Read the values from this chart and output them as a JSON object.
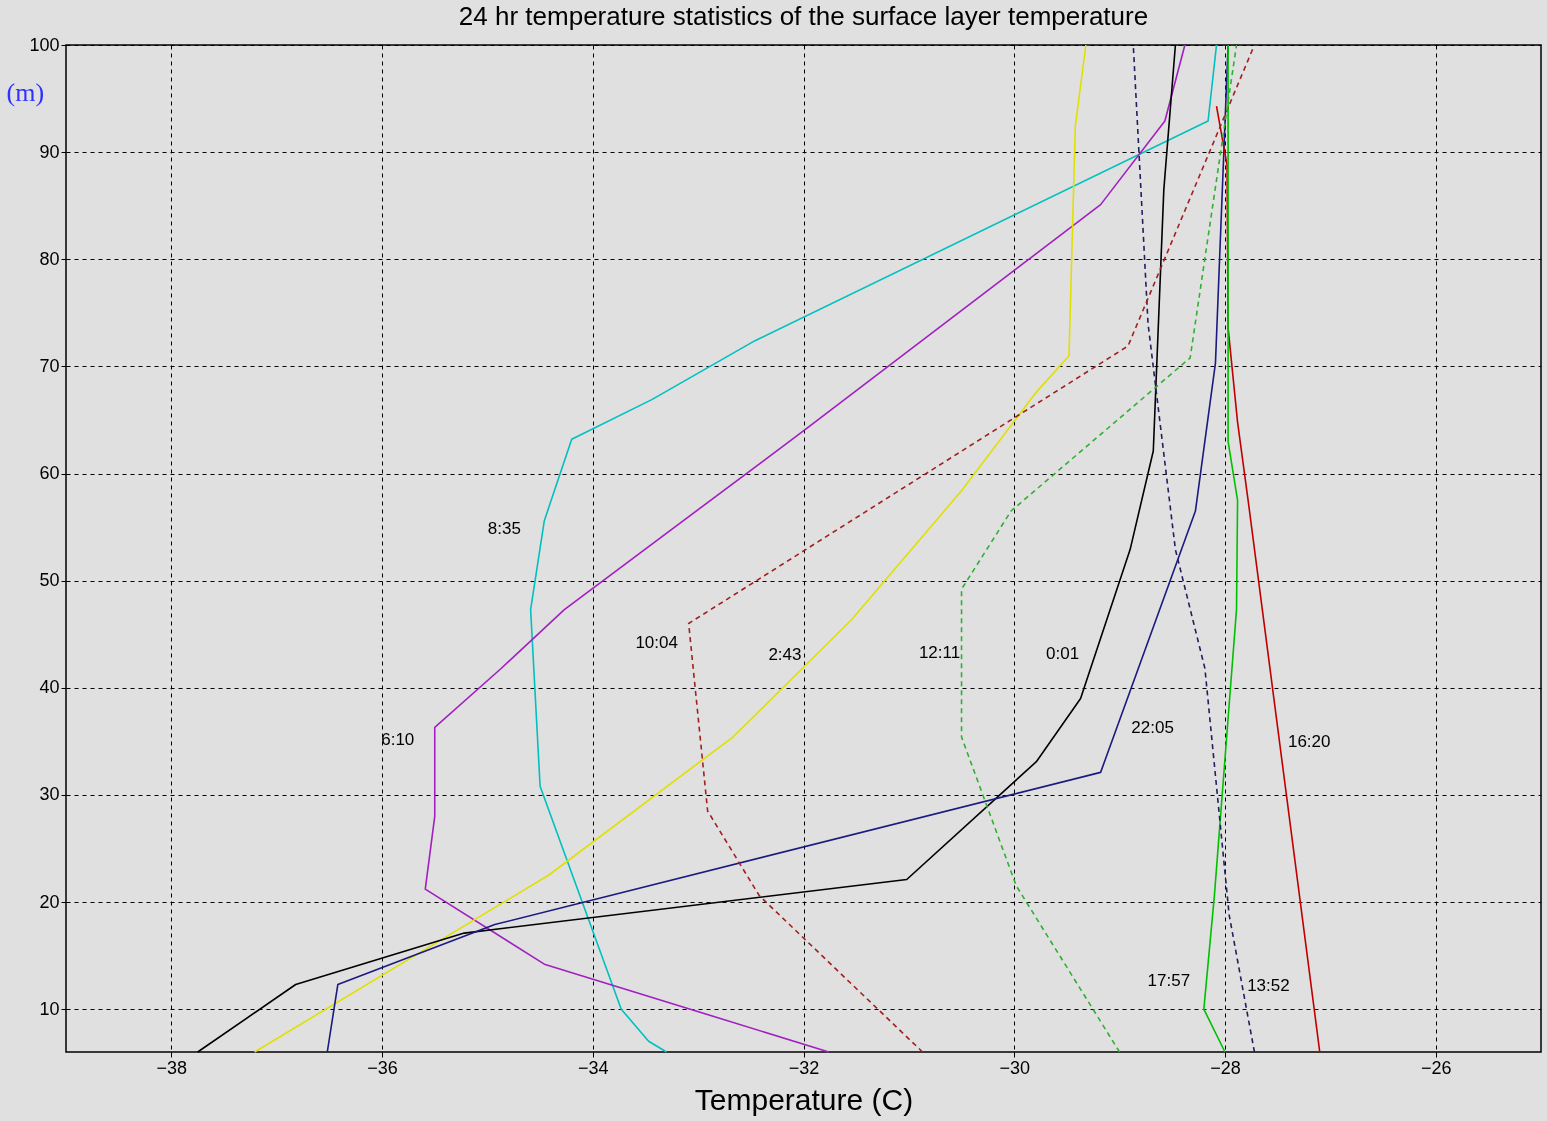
{
  "chart_data": {
    "type": "line",
    "title": "24 hr temperature statistics of the surface layer temperature",
    "xlabel": "Temperature (C)",
    "ylabel": "(m)",
    "xlim": [
      -39,
      -25
    ],
    "ylim": [
      6,
      100
    ],
    "xticks": [
      -38,
      -36,
      -34,
      -32,
      -30,
      -28,
      -26
    ],
    "yticks": [
      10,
      20,
      30,
      40,
      50,
      60,
      70,
      80,
      90,
      100
    ],
    "grid": true,
    "marker": "none",
    "series": [
      {
        "name": "8:35",
        "color": "#00c0c0",
        "line_style": "solid",
        "x": [
          -33.3,
          -33.47,
          -33.73,
          -34.5,
          -34.59,
          -34.46,
          -34.2,
          -33.44,
          -32.46,
          -28.16,
          -28.08
        ],
        "values": [
          6,
          7,
          10,
          30.8,
          47.3,
          55.6,
          63.2,
          66.9,
          72.4,
          92.9,
          100
        ]
      },
      {
        "name": "6:10",
        "color": "#a020c0",
        "line_style": "solid",
        "x": [
          -31.76,
          -34.46,
          -35.59,
          -35.5,
          -35.5,
          -34.87,
          -34.27,
          -32.01,
          -29.18,
          -28.57,
          -28.38
        ],
        "values": [
          6,
          14.2,
          21.2,
          28,
          36.3,
          41.8,
          47.3,
          63.9,
          85.1,
          92.9,
          100
        ]
      },
      {
        "name": "2:43",
        "color": "#e0e000",
        "line_style": "solid",
        "x": [
          -37.21,
          -34.42,
          -32.67,
          -31.54,
          -30.5,
          -29.79,
          -29.48,
          -29.42,
          -29.32
        ],
        "values": [
          6,
          22.5,
          35.4,
          46.4,
          58.4,
          67.6,
          71,
          92.4,
          100
        ]
      },
      {
        "name": "0:01",
        "color": "#000000",
        "line_style": "solid",
        "x": [
          -37.75,
          -36.82,
          -35.22,
          -31.02,
          -29.79,
          -29.37,
          -28.9,
          -28.68,
          -28.58,
          -28.47
        ],
        "values": [
          6,
          12.3,
          17.1,
          22.1,
          33.1,
          39,
          52.9,
          62.1,
          86.5,
          100
        ]
      },
      {
        "name": "22:05",
        "color": "#1a1a80",
        "line_style": "solid",
        "x": [
          -36.52,
          -36.42,
          -34.93,
          -29.18,
          -28.28,
          -28.09,
          -27.97
        ],
        "values": [
          6,
          12.3,
          17.9,
          32.1,
          56.5,
          70.3,
          100
        ]
      },
      {
        "name": "16:20",
        "color": "#c00000",
        "line_style": "solid",
        "x": [
          -27.1,
          -27.39,
          -27.78,
          -27.88,
          -27.97,
          -27.98,
          -28.08
        ],
        "values": [
          6,
          28,
          57.5,
          64.8,
          73.6,
          88.8,
          94.3
        ]
      },
      {
        "name": "17:57",
        "color": "#00c000",
        "line_style": "solid",
        "x": [
          -28.0,
          -28.2,
          -28.1,
          -27.89,
          -27.88,
          -27.97,
          -27.97
        ],
        "values": [
          6,
          10,
          20.6,
          47.3,
          57.5,
          63,
          100
        ]
      },
      {
        "name": "13:52",
        "color": "#202060",
        "line_style": "dashed",
        "x": [
          -27.72,
          -27.96,
          -28.19,
          -28.47,
          -28.73,
          -28.87
        ],
        "values": [
          6,
          18.8,
          41.8,
          52.9,
          74,
          100
        ]
      },
      {
        "name": "10:04",
        "color": "#a02020",
        "line_style": "dashed",
        "x": [
          -30.87,
          -32.42,
          -32.91,
          -33.09,
          -28.92,
          -27.72
        ],
        "values": [
          6,
          20.6,
          28.5,
          46,
          71.9,
          100
        ]
      },
      {
        "name": "12:11",
        "color": "#30b030",
        "line_style": "dashed",
        "x": [
          -29.0,
          -29.98,
          -30.5,
          -30.5,
          -30.03,
          -28.33,
          -27.89
        ],
        "values": [
          6,
          21.5,
          35.4,
          49.2,
          56.5,
          70.8,
          100
        ]
      }
    ]
  }
}
